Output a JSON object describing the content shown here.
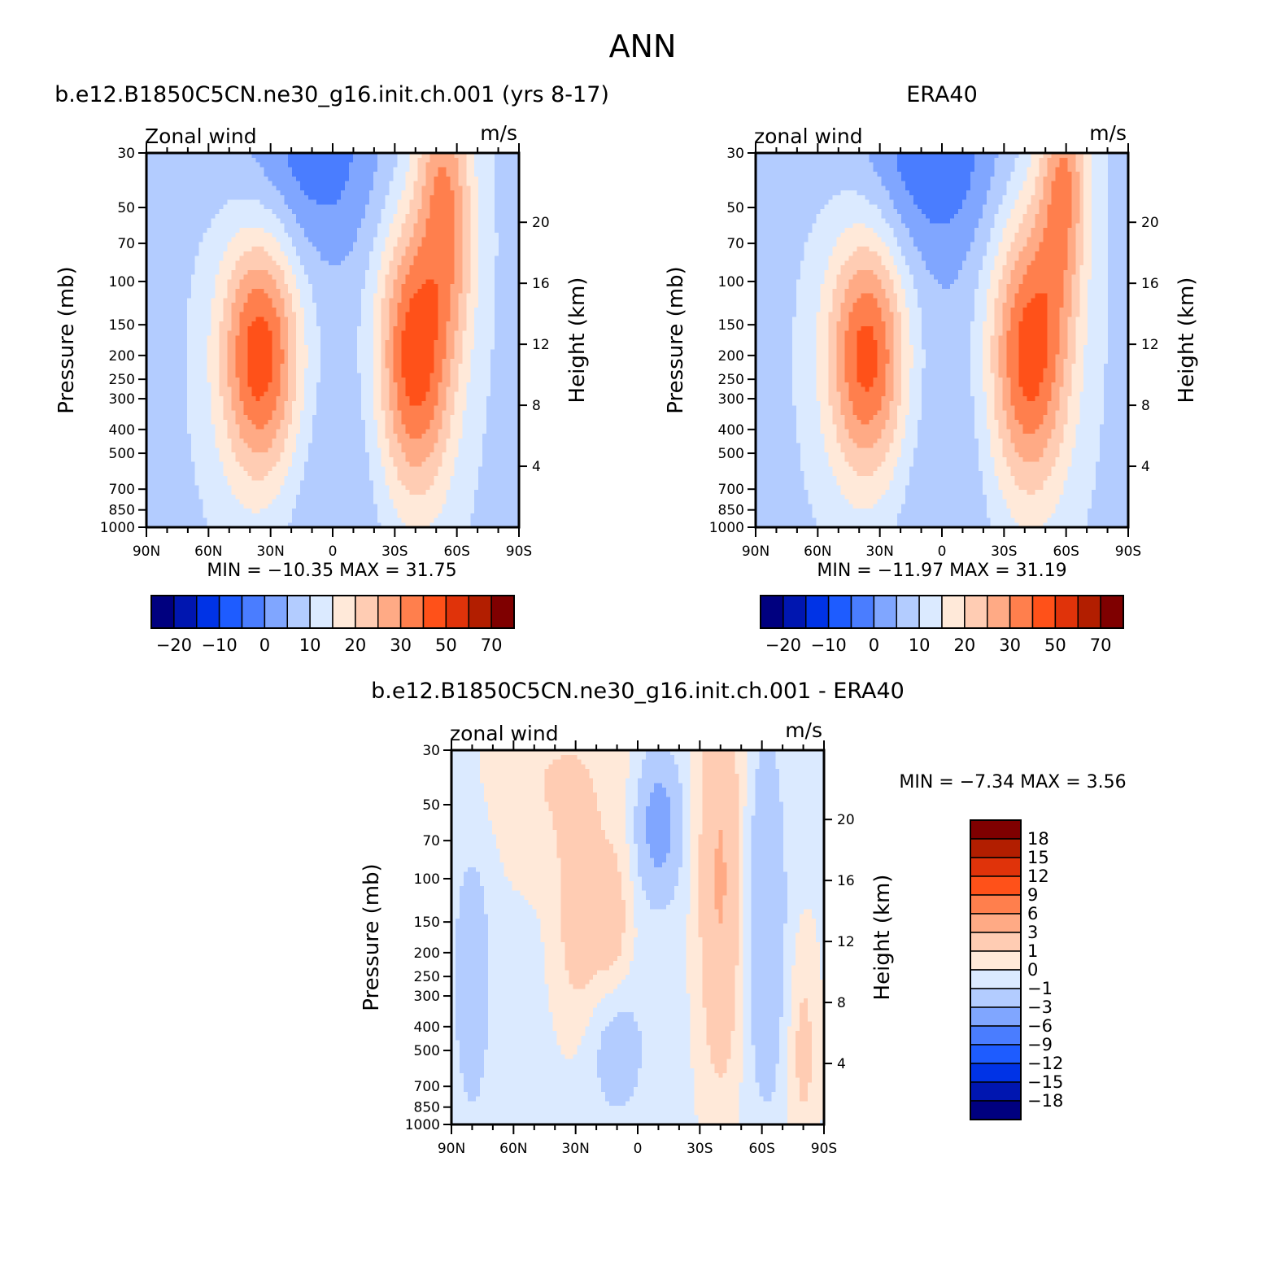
{
  "figure": {
    "title": "ANN"
  },
  "chart_data": [
    {
      "id": "model",
      "type": "heatmap",
      "title": "b.e12.B1850C5CN.ne30_g16.init.ch.001 (yrs 8-17)",
      "left_string": "Zonal wind",
      "right_string": "m/s",
      "xlabel": "",
      "ylabel": "Pressure (mb)",
      "ylabel_right": "Height (km)",
      "x_ticks": [
        {
          "value": 90,
          "label": "90N"
        },
        {
          "value": 60,
          "label": "60N"
        },
        {
          "value": 30,
          "label": "30N"
        },
        {
          "value": 0,
          "label": "0"
        },
        {
          "value": -30,
          "label": "30S"
        },
        {
          "value": -60,
          "label": "60S"
        },
        {
          "value": -90,
          "label": "90S"
        }
      ],
      "xlim": [
        90,
        -90
      ],
      "y_ticks": [
        30,
        50,
        70,
        100,
        150,
        200,
        250,
        300,
        400,
        500,
        700,
        850,
        1000
      ],
      "ylim": [
        1000,
        30
      ],
      "y_scale": "log",
      "height_ticks_km": [
        4,
        8,
        12,
        16,
        20
      ],
      "stats": {
        "min": "-10.35",
        "max": "31.75"
      },
      "field": {
        "base": 4,
        "features": [
          {
            "lat": 35,
            "p": 200,
            "amp": 30,
            "slat": 14,
            "slogp": 0.85
          },
          {
            "lat": -40,
            "p": 200,
            "amp": 30,
            "slat": 13,
            "slogp": 0.95
          },
          {
            "lat": -58,
            "p": 60,
            "amp": 14,
            "slat": 9,
            "slogp": 0.8
          },
          {
            "lat": -50,
            "p": 30,
            "amp": 10,
            "slat": 8,
            "slogp": 0.6
          },
          {
            "lat": 10,
            "p": 30,
            "amp": -12,
            "slat": 26,
            "slogp": 0.75
          },
          {
            "lat": 0,
            "p": 700,
            "amp": -4,
            "slat": 20,
            "slogp": 1.2
          }
        ]
      },
      "contour": {
        "levels": [
          -25,
          -20,
          -15,
          -10,
          -5,
          0,
          5,
          10,
          15,
          20,
          25,
          30,
          40,
          50,
          60,
          70
        ],
        "colors": [
          "#00007f",
          "#0016b0",
          "#0033e6",
          "#1e5cff",
          "#4a7dff",
          "#80a6ff",
          "#b3ccff",
          "#dbeaff",
          "#ffe9d9",
          "#ffccb3",
          "#ffaa85",
          "#ff7f4d",
          "#ff5119",
          "#e0330a",
          "#b21e00",
          "#7f0000"
        ]
      },
      "colorbar": {
        "labels": [
          "-20",
          "-10",
          "0",
          "10",
          "20",
          "30",
          "50",
          "70"
        ],
        "orientation": "horizontal"
      }
    },
    {
      "id": "obs",
      "type": "heatmap",
      "title": "ERA40",
      "left_string": "zonal wind",
      "right_string": "m/s",
      "xlabel": "",
      "ylabel": "Pressure (mb)",
      "ylabel_right": "Height (km)",
      "x_ticks": [
        {
          "value": 90,
          "label": "90N"
        },
        {
          "value": 60,
          "label": "60N"
        },
        {
          "value": 30,
          "label": "30N"
        },
        {
          "value": 0,
          "label": "0"
        },
        {
          "value": -30,
          "label": "30S"
        },
        {
          "value": -60,
          "label": "60S"
        },
        {
          "value": -90,
          "label": "90S"
        }
      ],
      "xlim": [
        90,
        -90
      ],
      "y_ticks": [
        30,
        50,
        70,
        100,
        150,
        200,
        250,
        300,
        400,
        500,
        700,
        850,
        1000
      ],
      "ylim": [
        1000,
        30
      ],
      "y_scale": "log",
      "height_ticks_km": [
        4,
        8,
        12,
        16,
        20
      ],
      "stats": {
        "min": "-11.97",
        "max": "31.19"
      },
      "field": {
        "base": 4,
        "features": [
          {
            "lat": 36,
            "p": 200,
            "amp": 29,
            "slat": 14,
            "slogp": 0.85
          },
          {
            "lat": -42,
            "p": 200,
            "amp": 29,
            "slat": 14,
            "slogp": 0.95
          },
          {
            "lat": -58,
            "p": 50,
            "amp": 14,
            "slat": 9,
            "slogp": 0.8
          },
          {
            "lat": -60,
            "p": 30,
            "amp": 8,
            "slat": 8,
            "slogp": 0.6
          },
          {
            "lat": 5,
            "p": 30,
            "amp": -13,
            "slat": 26,
            "slogp": 0.75
          },
          {
            "lat": 0,
            "p": 500,
            "amp": -4,
            "slat": 22,
            "slogp": 1.3
          }
        ]
      },
      "contour": {
        "levels": [
          -25,
          -20,
          -15,
          -10,
          -5,
          0,
          5,
          10,
          15,
          20,
          25,
          30,
          40,
          50,
          60,
          70
        ],
        "colors": [
          "#00007f",
          "#0016b0",
          "#0033e6",
          "#1e5cff",
          "#4a7dff",
          "#80a6ff",
          "#b3ccff",
          "#dbeaff",
          "#ffe9d9",
          "#ffccb3",
          "#ffaa85",
          "#ff7f4d",
          "#ff5119",
          "#e0330a",
          "#b21e00",
          "#7f0000"
        ]
      },
      "colorbar": {
        "labels": [
          "-20",
          "-10",
          "0",
          "10",
          "20",
          "30",
          "50",
          "70"
        ],
        "orientation": "horizontal"
      }
    },
    {
      "id": "diff",
      "type": "heatmap",
      "title": "b.e12.B1850C5CN.ne30_g16.init.ch.001 - ERA40",
      "left_string": "zonal wind",
      "right_string": "m/s",
      "xlabel": "",
      "ylabel": "Pressure (mb)",
      "ylabel_right": "Height (km)",
      "x_ticks": [
        {
          "value": 90,
          "label": "90N"
        },
        {
          "value": 60,
          "label": "60N"
        },
        {
          "value": 30,
          "label": "30N"
        },
        {
          "value": 0,
          "label": "0"
        },
        {
          "value": -30,
          "label": "30S"
        },
        {
          "value": -60,
          "label": "60S"
        },
        {
          "value": -90,
          "label": "90S"
        }
      ],
      "xlim": [
        90,
        -90
      ],
      "y_ticks": [
        30,
        50,
        70,
        100,
        150,
        200,
        250,
        300,
        400,
        500,
        700,
        850,
        1000
      ],
      "ylim": [
        1000,
        30
      ],
      "y_scale": "log",
      "height_ticks_km": [
        4,
        8,
        12,
        16,
        20
      ],
      "stats": {
        "min": "-7.34",
        "max": "3.56"
      },
      "field": {
        "base": -0.2,
        "features": [
          {
            "lat": -40,
            "p": 100,
            "amp": 3.4,
            "slat": 7,
            "slogp": 1.3
          },
          {
            "lat": -10,
            "p": 60,
            "amp": -4.2,
            "slat": 7,
            "slogp": 0.45
          },
          {
            "lat": 80,
            "p": 250,
            "amp": -1.6,
            "slat": 7,
            "slogp": 1.0
          },
          {
            "lat": -62,
            "p": 150,
            "amp": -2.2,
            "slat": 7,
            "slogp": 1.2
          },
          {
            "lat": 28,
            "p": 150,
            "amp": 2.0,
            "slat": 8,
            "slogp": 0.7
          },
          {
            "lat": 12,
            "p": 150,
            "amp": 1.8,
            "slat": 6,
            "slogp": 0.5
          },
          {
            "lat": 10,
            "p": 500,
            "amp": -1.6,
            "slat": 10,
            "slogp": 0.45
          },
          {
            "lat": 40,
            "p": 40,
            "amp": 1.2,
            "slat": 25,
            "slogp": 0.6
          },
          {
            "lat": -80,
            "p": 500,
            "amp": 1.6,
            "slat": 5,
            "slogp": 0.7
          }
        ]
      },
      "contour": {
        "levels": [
          -18,
          -15,
          -12,
          -9,
          -6,
          -3,
          -1,
          0,
          1,
          3,
          6,
          9,
          12,
          15,
          18
        ],
        "colors": [
          "#00007f",
          "#0016b0",
          "#0033e6",
          "#1e5cff",
          "#4a7dff",
          "#80a6ff",
          "#b3ccff",
          "#dbeaff",
          "#ffe9d9",
          "#ffccb3",
          "#ffaa85",
          "#ff7f4d",
          "#ff5119",
          "#e0330a",
          "#b21e00",
          "#7f0000"
        ]
      },
      "colorbar": {
        "labels": [
          "18",
          "15",
          "12",
          "9",
          "6",
          "3",
          "1",
          "0",
          "-1",
          "-3",
          "-6",
          "-9",
          "-12",
          "-15",
          "-18"
        ],
        "orientation": "vertical"
      }
    }
  ]
}
